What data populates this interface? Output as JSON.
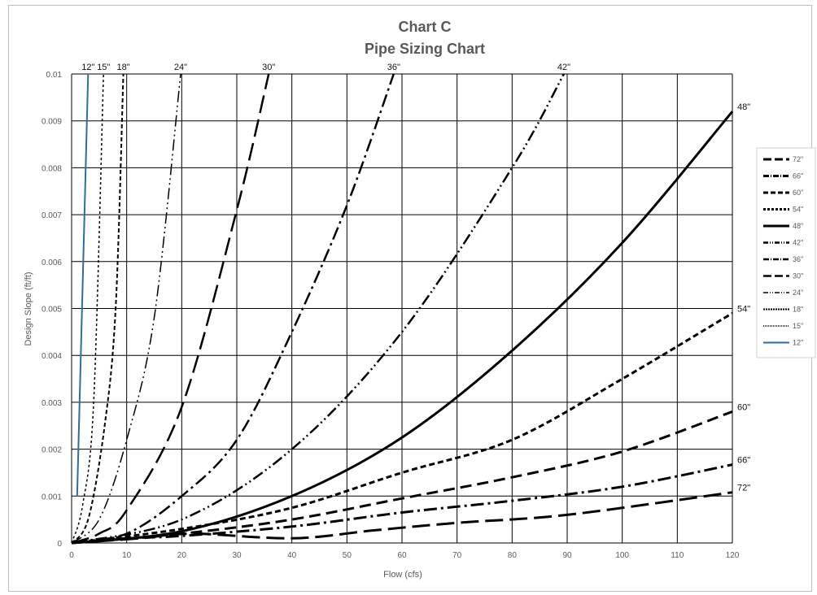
{
  "chart_data": {
    "type": "line",
    "title": "Chart C",
    "subtitle": "Pipe Sizing Chart",
    "xlabel": "Flow (cfs)",
    "ylabel": "Design Slope (ft/ft)",
    "xlim": [
      0,
      120
    ],
    "ylim": [
      0,
      0.01
    ],
    "xticks": [
      "0",
      "10",
      "20",
      "30",
      "40",
      "50",
      "60",
      "70",
      "80",
      "90",
      "100",
      "110",
      "120"
    ],
    "yticks": [
      "0",
      "0.001",
      "0.002",
      "0.003",
      "0.004",
      "0.005",
      "0.006",
      "0.007",
      "0.008",
      "0.009",
      "0.01"
    ],
    "grid": true,
    "legend_position": "right",
    "series": [
      {
        "name": "72\"",
        "label": "72\"",
        "label_at": "right",
        "dash": "long",
        "width": 3,
        "color": "#000000",
        "points": [
          [
            0,
            0
          ],
          [
            12.5,
            0.0001
          ],
          [
            22,
            0.0002
          ],
          [
            40,
            0.0001
          ],
          [
            55,
            0.00027
          ],
          [
            70,
            0.00043
          ],
          [
            90,
            0.0006
          ],
          [
            120,
            0.00108
          ]
        ]
      },
      {
        "name": "66\"",
        "label": "66\"",
        "label_at": "right",
        "dash": "dashdot",
        "width": 3,
        "color": "#000000",
        "points": [
          [
            0,
            0
          ],
          [
            10,
            0.0001
          ],
          [
            20,
            0.00015
          ],
          [
            40,
            0.00035
          ],
          [
            60,
            0.00065
          ],
          [
            80,
            0.0009
          ],
          [
            100,
            0.0012
          ],
          [
            120,
            0.00167
          ]
        ]
      },
      {
        "name": "60\"",
        "label": "60\"",
        "label_at": "right",
        "dash": "dash",
        "width": 3,
        "color": "#000000",
        "points": [
          [
            0,
            0
          ],
          [
            20,
            0.0002
          ],
          [
            40,
            0.0005
          ],
          [
            60,
            0.00095
          ],
          [
            80,
            0.0014
          ],
          [
            100,
            0.00195
          ],
          [
            120,
            0.0028
          ]
        ]
      },
      {
        "name": "54\"",
        "label": "54\"",
        "label_at": "right",
        "dash": "dense",
        "width": 3,
        "color": "#000000",
        "points": [
          [
            0,
            0
          ],
          [
            20,
            0.0003
          ],
          [
            40,
            0.00075
          ],
          [
            60,
            0.0015
          ],
          [
            80,
            0.0022
          ],
          [
            100,
            0.0035
          ],
          [
            120,
            0.0049
          ]
        ]
      },
      {
        "name": "48\"",
        "label": "48\"",
        "label_at": "right",
        "dash": "solid",
        "width": 3,
        "color": "#000000",
        "points": [
          [
            0,
            0
          ],
          [
            20,
            0.00025
          ],
          [
            40,
            0.001
          ],
          [
            60,
            0.00225
          ],
          [
            80,
            0.0041
          ],
          [
            100,
            0.0064
          ],
          [
            120,
            0.0092
          ]
        ]
      },
      {
        "name": "42\"",
        "label": "42\"",
        "label_at": "top",
        "dash": "dashdotdot",
        "width": 2.5,
        "color": "#000000",
        "points": [
          [
            0,
            0
          ],
          [
            20,
            0.0005
          ],
          [
            40,
            0.002
          ],
          [
            60,
            0.0045
          ],
          [
            80,
            0.008
          ],
          [
            89.4,
            0.01
          ]
        ]
      },
      {
        "name": "36\"",
        "label": "36\"",
        "label_at": "top",
        "dash": "dashdot",
        "width": 2.5,
        "color": "#000000",
        "points": [
          [
            0,
            0
          ],
          [
            10,
            0.0002
          ],
          [
            20,
            0.001
          ],
          [
            30,
            0.0022
          ],
          [
            40,
            0.0045
          ],
          [
            50,
            0.0072
          ],
          [
            58.5,
            0.01
          ]
        ]
      },
      {
        "name": "30\"",
        "label": "30\"",
        "label_at": "top",
        "dash": "long",
        "width": 2.5,
        "color": "#000000",
        "points": [
          [
            0,
            0
          ],
          [
            5,
            0.0002
          ],
          [
            10,
            0.0007
          ],
          [
            20,
            0.0029
          ],
          [
            30,
            0.0071
          ],
          [
            35.8,
            0.01
          ]
        ]
      },
      {
        "name": "24\"",
        "label": "24\"",
        "label_at": "top",
        "dash": "dashdotdot",
        "width": 1.5,
        "color": "#000000",
        "points": [
          [
            0,
            0
          ],
          [
            5,
            0.0005
          ],
          [
            10,
            0.0022
          ],
          [
            15,
            0.0048
          ],
          [
            19.8,
            0.01
          ]
        ]
      },
      {
        "name": "18\"",
        "label": "18\"",
        "label_at": "top",
        "dash": "shortdash",
        "width": 2,
        "color": "#000000",
        "points": [
          [
            0,
            0
          ],
          [
            3,
            0.0005
          ],
          [
            6,
            0.0025
          ],
          [
            8,
            0.005
          ],
          [
            9.4,
            0.01
          ]
        ]
      },
      {
        "name": "15\"",
        "label": "15\"",
        "label_at": "top",
        "dash": "dot",
        "width": 1.5,
        "color": "#000000",
        "points": [
          [
            0,
            0
          ],
          [
            2,
            0.0008
          ],
          [
            4,
            0.003
          ],
          [
            5.8,
            0.01
          ]
        ]
      },
      {
        "name": "12\"",
        "label": "12\"",
        "label_at": "top",
        "dash": "solid",
        "width": 2,
        "color": "#2e6e9e",
        "points": [
          [
            1,
            0.001
          ],
          [
            3,
            0.01
          ]
        ]
      }
    ]
  }
}
